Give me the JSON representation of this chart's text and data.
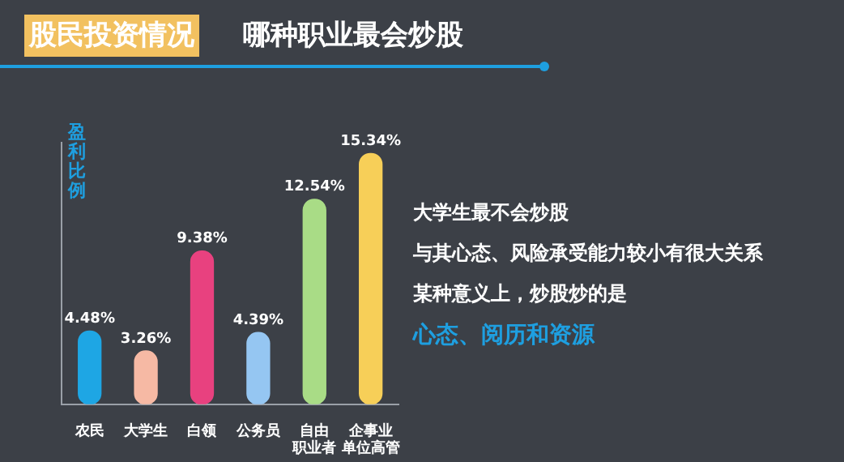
{
  "chart_data": {
    "type": "bar",
    "title": "股民投资情况",
    "subtitle": "哪种职业最会炒股",
    "ylabel": "盈利比例",
    "categories": [
      "农民",
      "大学生",
      "白领",
      "公务员",
      "自由职业者",
      "企事业单位高管"
    ],
    "values": [
      4.48,
      3.26,
      9.38,
      4.39,
      12.54,
      15.34
    ],
    "colors": [
      "#1ea6e4",
      "#f6b9a4",
      "#e8417f",
      "#95c6f2",
      "#a9dc86",
      "#f7cf58"
    ],
    "value_labels": [
      "4.48%",
      "3.26%",
      "9.38%",
      "4.39%",
      "12.54%",
      "15.34%"
    ],
    "annotations": [
      "大学生最不会炒股",
      "与其心态、风险承受能力较小有很大关系",
      "某种意义上，炒股炒的是",
      "心态、阅历和资源"
    ],
    "grid": false,
    "legend": false
  }
}
